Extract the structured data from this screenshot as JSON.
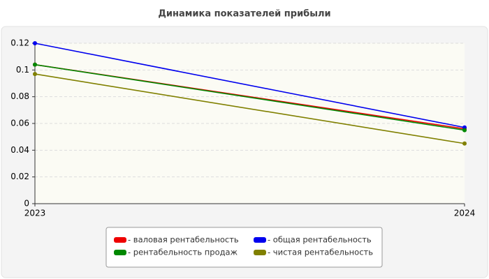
{
  "chart_data": {
    "type": "line",
    "title": "Динамика показателей прибыли",
    "categories": [
      "2023",
      "2024"
    ],
    "series": [
      {
        "name": "- валовая рентабельность",
        "color": "#ee0000",
        "values": [
          0.104,
          0.056
        ]
      },
      {
        "name": "- общая рентабельность",
        "color": "#0000ee",
        "values": [
          0.12,
          0.057
        ]
      },
      {
        "name": "- рентабельность продаж",
        "color": "#008800",
        "values": [
          0.104,
          0.055
        ]
      },
      {
        "name": "- чистая рентабельность",
        "color": "#808000",
        "values": [
          0.097,
          0.045
        ]
      }
    ],
    "ylim": [
      0,
      0.12
    ],
    "yticks": [
      0,
      0.02,
      0.04,
      0.06,
      0.08,
      0.1,
      0.12
    ],
    "grid": true
  }
}
